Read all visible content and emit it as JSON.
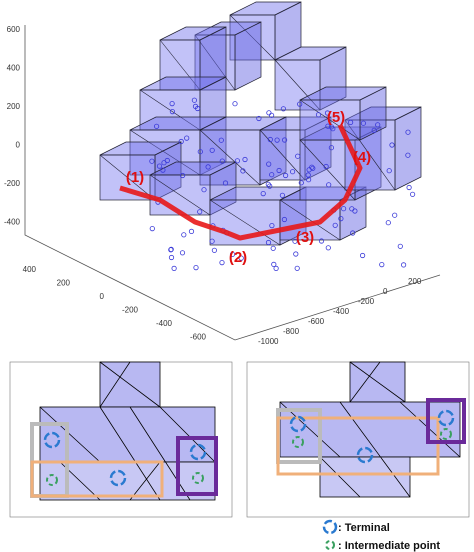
{
  "top_plot": {
    "z_ticks": [
      600,
      400,
      200,
      0,
      -200,
      -400
    ],
    "x_ticks": [
      400,
      200,
      0,
      -200,
      -400,
      -600
    ],
    "y_ticks": [
      200,
      0,
      -200,
      -400,
      -600,
      -800,
      -1000
    ],
    "path_labels": [
      "(1)",
      "(2)",
      "(3)",
      "(4)",
      "(5)"
    ]
  },
  "legend": {
    "terminal": ": Terminal",
    "intermediate": ": Intermediate point"
  }
}
